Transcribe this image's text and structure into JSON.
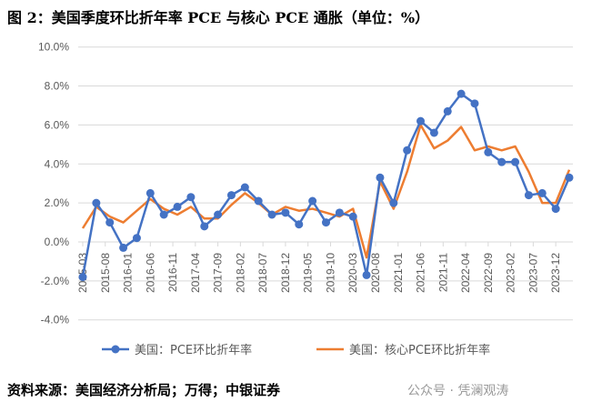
{
  "title": "图 2：美国季度环比折年率 PCE 与核心 PCE 通胀（单位：%）",
  "source": "资料来源：美国经济分析局；万得；中银证券",
  "watermark": "公众号 · 凭澜观涛",
  "chart_data": {
    "type": "line",
    "title": "",
    "ylim": [
      -4,
      10
    ],
    "yticks": [
      -4,
      -2,
      0,
      2,
      4,
      6,
      8,
      10
    ],
    "ytick_labels": [
      "-4.0%",
      "-2.0%",
      "0.0%",
      "2.0%",
      "4.0%",
      "6.0%",
      "8.0%",
      "10.0%"
    ],
    "xtick_labels": [
      "2015-03",
      "2015-08",
      "2016-01",
      "2016-06",
      "2016-11",
      "2017-04",
      "2017-09",
      "2018-02",
      "2018-07",
      "2018-12",
      "2019-05",
      "2019-10",
      "2020-03",
      "2020-08",
      "2021-01",
      "2021-06",
      "2021-11",
      "2022-04",
      "2022-09",
      "2023-02",
      "2023-07",
      "2023-12"
    ],
    "grid": true,
    "legend": "bottom",
    "x": [
      "2015-03",
      "2015-06",
      "2015-09",
      "2015-12",
      "2016-03",
      "2016-06",
      "2016-09",
      "2016-12",
      "2017-03",
      "2017-06",
      "2017-09",
      "2017-12",
      "2018-03",
      "2018-06",
      "2018-09",
      "2018-12",
      "2019-03",
      "2019-06",
      "2019-09",
      "2019-12",
      "2020-03",
      "2020-06",
      "2020-09",
      "2020-12",
      "2021-03",
      "2021-06",
      "2021-09",
      "2021-12",
      "2022-03",
      "2022-06",
      "2022-09",
      "2022-12",
      "2023-03",
      "2023-06",
      "2023-09",
      "2023-12",
      "2024-03"
    ],
    "series": [
      {
        "name": "美国：PCE环比折年率",
        "color": "#4472C4",
        "markers": true,
        "values": [
          -1.8,
          2.0,
          1.0,
          -0.3,
          0.2,
          2.5,
          1.4,
          1.8,
          2.3,
          0.8,
          1.4,
          2.4,
          2.8,
          2.1,
          1.4,
          1.5,
          0.9,
          2.1,
          1.0,
          1.5,
          1.3,
          -1.7,
          3.3,
          2.0,
          4.7,
          6.2,
          5.6,
          6.7,
          7.6,
          7.1,
          4.6,
          4.1,
          4.1,
          2.4,
          2.5,
          1.7,
          3.3
        ]
      },
      {
        "name": "美国：核心PCE环比折年率",
        "color": "#ED7D31",
        "markers": false,
        "values": [
          0.7,
          1.8,
          1.3,
          1.0,
          1.6,
          2.2,
          1.7,
          1.4,
          1.8,
          1.2,
          1.2,
          1.9,
          2.5,
          2.0,
          1.4,
          1.8,
          1.6,
          1.7,
          1.5,
          1.3,
          1.7,
          -0.8,
          3.1,
          1.7,
          3.6,
          6.0,
          4.8,
          5.2,
          5.9,
          4.7,
          4.9,
          4.7,
          4.9,
          3.6,
          2.0,
          2.0,
          3.7
        ]
      }
    ]
  }
}
